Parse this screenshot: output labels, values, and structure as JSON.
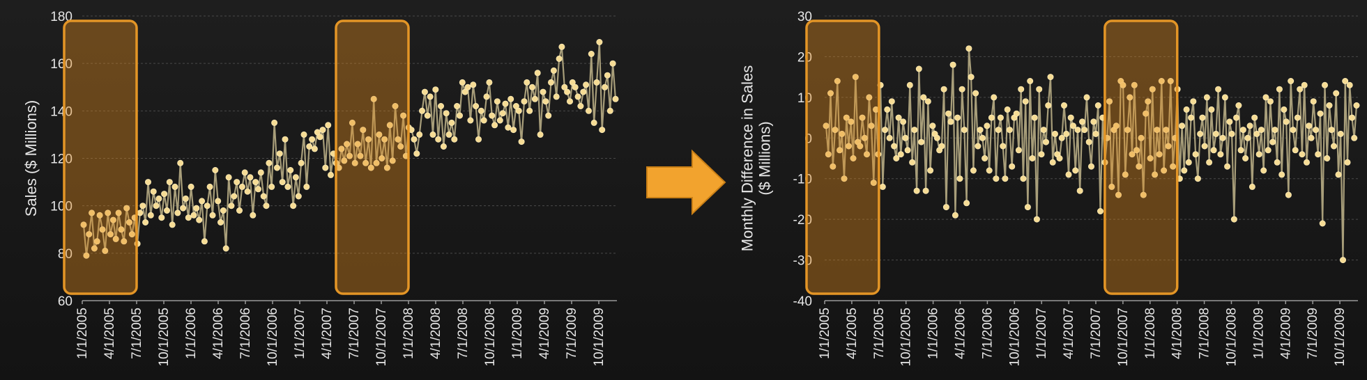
{
  "colors": {
    "background": "#1a1a1a",
    "series_line": "#a89e7a",
    "series_point": "#f6dc95",
    "highlight": "#e39526",
    "arrow": "#f2a32e",
    "text": "#e6e6e6"
  },
  "arrow": {
    "icon": "right-arrow-icon"
  },
  "chart_data": [
    {
      "type": "line",
      "title": "",
      "ylabel": "Sales ($ Millions)",
      "ylim": [
        60,
        180
      ],
      "yticks": [
        "60",
        "80",
        "100",
        "120",
        "140",
        "160",
        "180"
      ],
      "xtick_labels": [
        "1/1/2005",
        "4/1/2005",
        "7/1/2005",
        "10/1/2005",
        "1/1/2006",
        "4/1/2006",
        "7/1/2006",
        "10/1/2006",
        "1/1/2007",
        "4/1/2007",
        "7/1/2007",
        "10/1/2007",
        "1/1/2008",
        "4/1/2008",
        "7/1/2008",
        "10/1/2008",
        "1/1/2009",
        "4/1/2009",
        "7/1/2009",
        "10/1/2009"
      ],
      "grid": "horizontal",
      "highlights": [
        {
          "from": "1/1/2005",
          "to": "5/1/2005"
        },
        {
          "from": "7/1/2007",
          "to": "11/1/2007"
        }
      ],
      "series": [
        {
          "values": [
            92,
            79,
            88,
            97,
            82,
            85,
            96,
            90,
            81,
            97,
            88,
            94,
            86,
            97,
            90,
            85,
            99,
            93,
            88,
            95,
            84,
            97,
            100,
            93,
            110,
            96,
            106,
            100,
            103,
            95,
            105,
            98,
            110,
            92,
            108,
            97,
            118,
            99,
            103,
            95,
            108,
            96,
            99,
            94,
            102,
            85,
            100,
            108,
            96,
            115,
            102,
            93,
            98,
            82,
            112,
            100,
            104,
            110,
            98,
            108,
            114,
            106,
            112,
            96,
            110,
            107,
            114,
            104,
            100,
            118,
            108,
            135,
            116,
            122,
            110,
            128,
            108,
            115,
            100,
            112,
            104,
            118,
            130,
            108,
            125,
            128,
            124,
            131,
            129,
            132,
            116,
            134,
            113,
            122,
            118,
            116,
            124,
            119,
            126,
            121,
            135,
            118,
            126,
            121,
            132,
            118,
            128,
            116,
            145,
            118,
            130,
            120,
            128,
            116,
            134,
            119,
            142,
            128,
            125,
            138,
            121,
            133,
            132,
            128,
            122,
            130,
            140,
            148,
            138,
            146,
            130,
            149,
            128,
            142,
            125,
            139,
            130,
            135,
            128,
            142,
            138,
            152,
            148,
            150,
            136,
            151,
            142,
            128,
            140,
            136,
            146,
            152,
            138,
            134,
            144,
            136,
            139,
            143,
            133,
            145,
            132,
            142,
            140,
            127,
            144,
            152,
            140,
            150,
            145,
            156,
            130,
            148,
            144,
            138,
            152,
            157,
            146,
            162,
            167,
            150,
            148,
            144,
            152,
            150,
            146,
            142,
            148,
            151,
            140,
            164,
            135,
            152,
            169,
            132,
            150,
            155,
            140,
            160,
            145
          ]
        }
      ]
    },
    {
      "type": "line",
      "title": "",
      "ylabel": "Monthly Difference in Sales ($ Millions)",
      "ylim": [
        -40,
        30
      ],
      "yticks": [
        "-40",
        "-30",
        "-20",
        "-10",
        "0",
        "10",
        "20",
        "30"
      ],
      "xtick_labels": [
        "1/1/2005",
        "4/1/2005",
        "7/1/2005",
        "10/1/2005",
        "1/1/2006",
        "4/1/2006",
        "7/1/2006",
        "10/1/2006",
        "1/1/2007",
        "4/1/2007",
        "7/1/2007",
        "10/1/2007",
        "1/1/2008",
        "4/1/2008",
        "7/1/2008",
        "10/1/2008",
        "1/1/2009",
        "4/1/2009",
        "7/1/2009",
        "10/1/2009"
      ],
      "grid": "horizontal",
      "highlights": [
        {
          "from": "1/1/2005",
          "to": "5/1/2005"
        },
        {
          "from": "10/1/2007",
          "to": "2/1/2008"
        }
      ],
      "series": [
        {
          "values": [
            3,
            -4,
            11,
            -7,
            2,
            14,
            -3,
            1,
            -10,
            5,
            -2,
            4,
            -5,
            15,
            -1,
            -2,
            5,
            0,
            -4,
            10,
            3,
            -11,
            7,
            -4,
            13,
            -12,
            2,
            7,
            0,
            9,
            -2,
            -5,
            5,
            -4,
            4,
            0,
            -3,
            13,
            -6,
            2,
            -13,
            17,
            -1,
            10,
            -13,
            9,
            -8,
            3,
            1,
            0,
            -3,
            -2,
            12,
            -17,
            6,
            4,
            18,
            -19,
            5,
            -10,
            12,
            2,
            -16,
            22,
            15,
            -8,
            11,
            -2,
            2,
            0,
            -5,
            3,
            -8,
            5,
            10,
            -10,
            2,
            5,
            -2,
            -10,
            7,
            2,
            -7,
            5,
            6,
            -3,
            12,
            -10,
            9,
            -17,
            14,
            -5,
            5,
            -20,
            12,
            -4,
            2,
            -1,
            8,
            15,
            -6,
            1,
            -4,
            -5,
            0,
            8,
            1,
            -9,
            5,
            3,
            -8,
            2,
            -13,
            4,
            2,
            10,
            -1,
            -7,
            4,
            1,
            8,
            -18,
            5,
            -6,
            0,
            9,
            -12,
            2,
            3,
            -14,
            14,
            13,
            -9,
            2,
            10,
            -4,
            13,
            -3,
            -7,
            0,
            -14,
            6,
            9,
            -5,
            12,
            -9,
            2,
            -4,
            14,
            -8,
            2,
            -2,
            14,
            -7,
            0,
            12,
            -10,
            3,
            -8,
            7,
            -6,
            5,
            9,
            -4,
            -10,
            1,
            5,
            -2,
            10,
            -6,
            7,
            -3,
            1,
            12,
            -4,
            0,
            10,
            -7,
            4,
            1,
            -20,
            5,
            8,
            -3,
            2,
            -5,
            0,
            3,
            -12,
            5,
            1,
            -4,
            2,
            -8,
            10,
            -3,
            9,
            -1,
            2,
            -6,
            12,
            -9,
            7,
            4,
            -14,
            14,
            2,
            -3,
            5,
            12,
            -4,
            13,
            -6,
            3,
            0,
            9,
            2,
            -4,
            6,
            -21,
            13,
            -5,
            8,
            2,
            -2,
            11,
            -9,
            1,
            -30,
            14,
            -6,
            13,
            5,
            0,
            8
          ]
        }
      ]
    }
  ]
}
